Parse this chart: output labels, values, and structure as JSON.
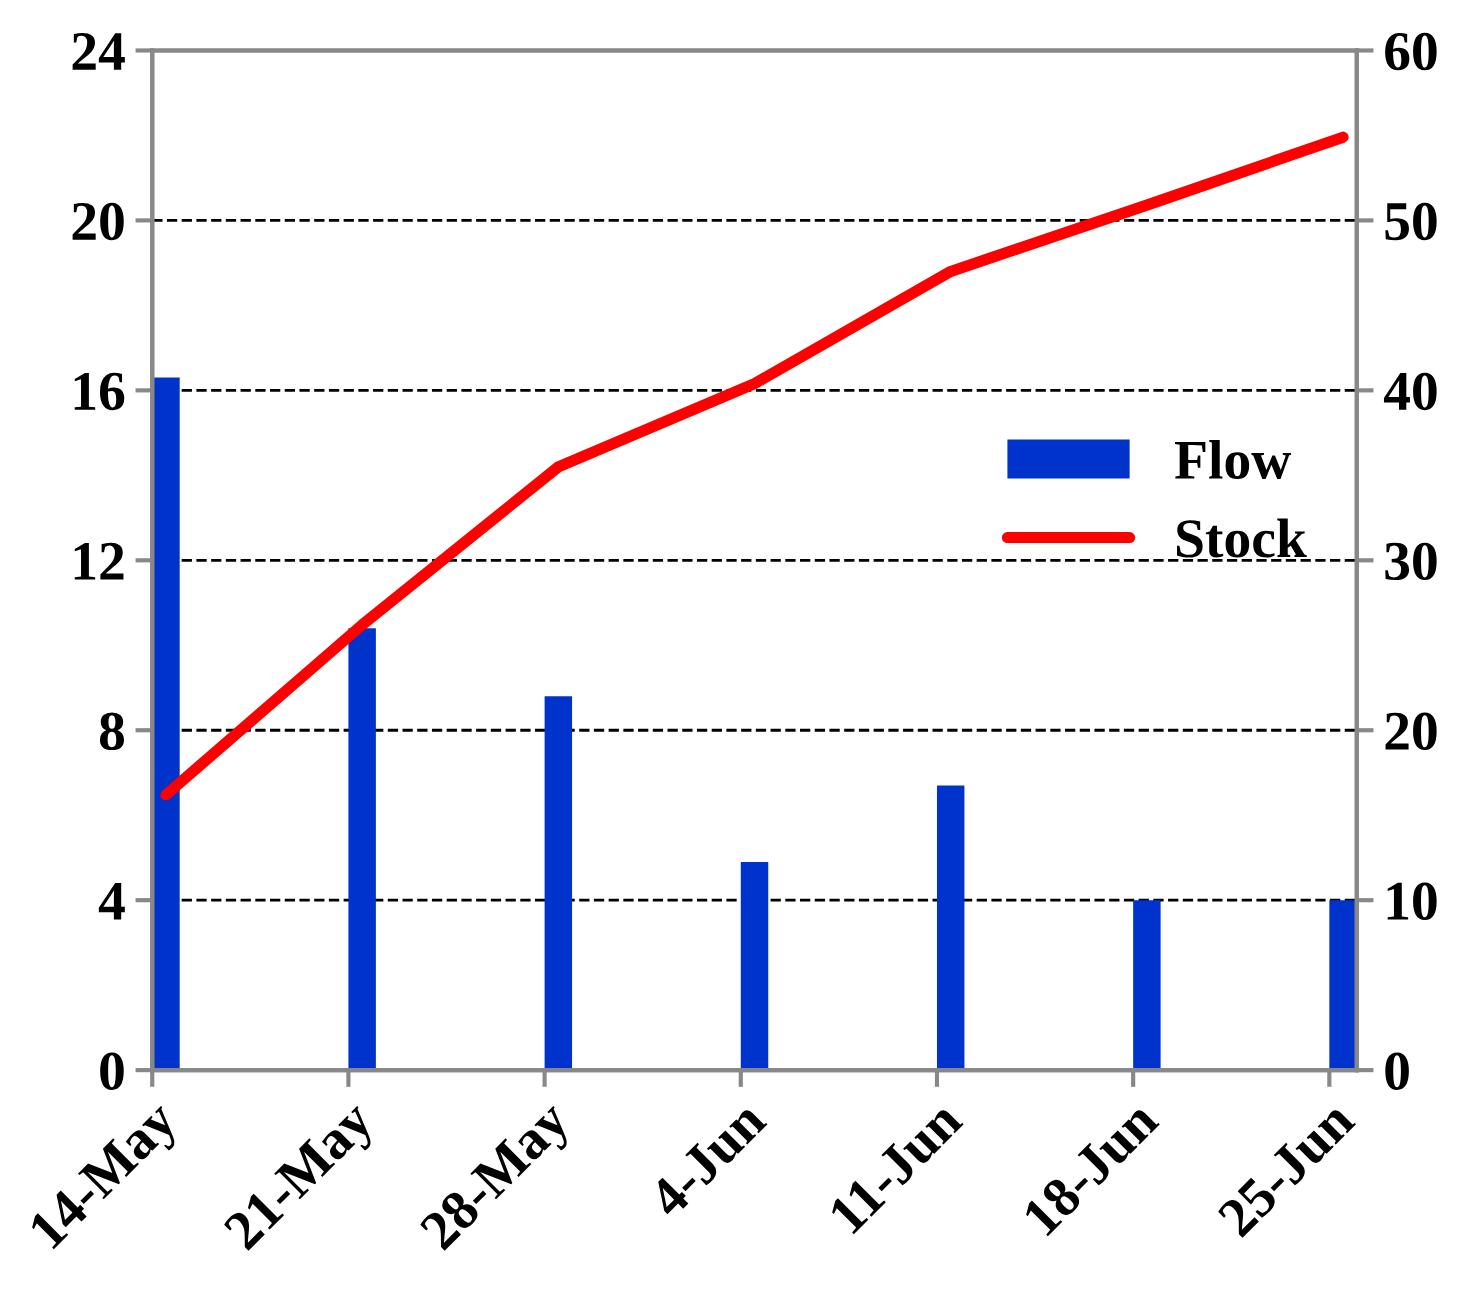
{
  "chart_data": {
    "type": "bar",
    "categories": [
      "14-May",
      "21-May",
      "28-May",
      "4-Jun",
      "11-Jun",
      "18-Jun",
      "25-Jun"
    ],
    "series": [
      {
        "name": "Flow",
        "color": "#0033cc",
        "values": [
          16.3,
          10.4,
          8.8,
          4.9,
          6.7,
          4,
          4
        ]
      },
      {
        "name": "Stock",
        "type": "line",
        "axis": "y2",
        "color": "#ff0000",
        "values": [
          16.2,
          26.2,
          35.5,
          40.4,
          47,
          50.9,
          54.9
        ]
      }
    ],
    "ylim": [
      0,
      24
    ],
    "yticks": [
      0,
      4,
      8,
      12,
      16,
      20,
      24
    ],
    "y2lim": [
      0,
      60
    ],
    "y2ticks": [
      0,
      10,
      20,
      30,
      40,
      50,
      60
    ],
    "grid": "y",
    "legend": "right",
    "marker": "none",
    "line_style": "solid"
  }
}
